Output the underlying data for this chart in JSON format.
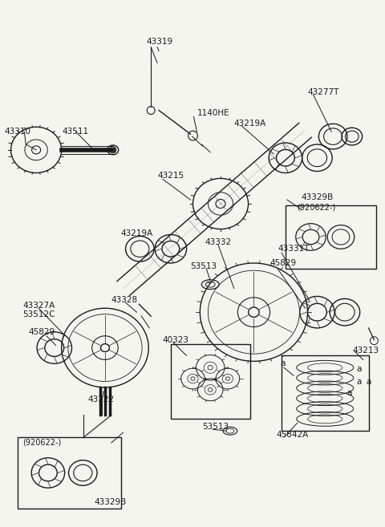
{
  "bg_color": "#f5f5f0",
  "line_color": "#1a1a1a",
  "text_color": "#1a1a1a",
  "figsize": [
    4.8,
    6.57
  ],
  "dpi": 100,
  "xlim": [
    0,
    480
  ],
  "ylim": [
    0,
    657
  ]
}
